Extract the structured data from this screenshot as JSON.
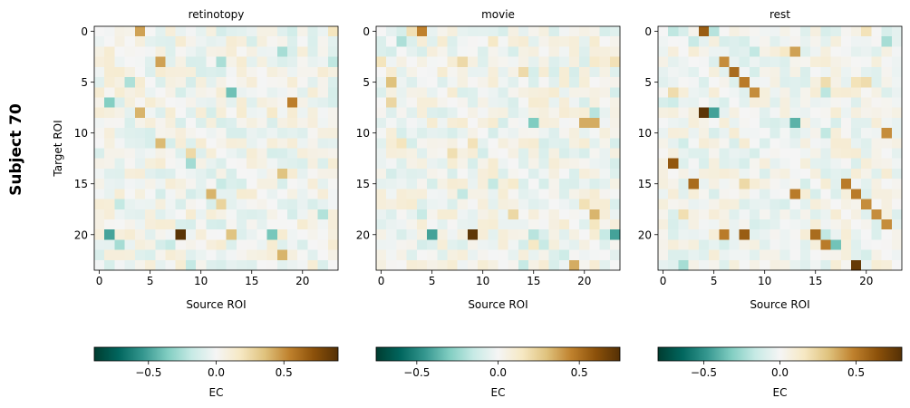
{
  "figure": {
    "row_label": "Subject 70",
    "colormap": "BrBG_r",
    "colormap_stops": [
      "#003c30",
      "#01665e",
      "#35978f",
      "#80cdc1",
      "#c7eae5",
      "#f5f5f5",
      "#f6e8c3",
      "#dfc27d",
      "#bf812d",
      "#8c510a",
      "#543005"
    ]
  },
  "chart_data": [
    {
      "type": "heatmap",
      "title": "retinotopy",
      "xlabel": "Source ROI",
      "ylabel": "Target ROI",
      "xticks": [
        "0",
        "5",
        "10",
        "15",
        "20"
      ],
      "yticks": [
        "0",
        "5",
        "10",
        "15",
        "20"
      ],
      "grid": false,
      "colorbar": {
        "label": "EC",
        "range": [
          -0.9,
          0.9
        ],
        "ticks": [
          "−0.5",
          "0.0",
          "0.5"
        ],
        "tick_values": [
          -0.5,
          0.0,
          0.5
        ],
        "orientation": "horizontal",
        "placement": "below"
      },
      "n": 24,
      "noise_seed": 17,
      "noise_amp": 0.28,
      "highlights": [
        {
          "row": 20,
          "col": 8,
          "value": 0.88
        },
        {
          "row": 20,
          "col": 1,
          "value": -0.5
        },
        {
          "row": 0,
          "col": 4,
          "value": 0.45
        },
        {
          "row": 3,
          "col": 6,
          "value": 0.45
        },
        {
          "row": 7,
          "col": 1,
          "value": -0.35
        },
        {
          "row": 11,
          "col": 6,
          "value": 0.38
        },
        {
          "row": 7,
          "col": 19,
          "value": 0.55
        },
        {
          "row": 6,
          "col": 13,
          "value": -0.4
        },
        {
          "row": 20,
          "col": 17,
          "value": -0.38
        },
        {
          "row": 20,
          "col": 13,
          "value": 0.35
        },
        {
          "row": 16,
          "col": 11,
          "value": 0.4
        },
        {
          "row": 14,
          "col": 18,
          "value": 0.35
        },
        {
          "row": 22,
          "col": 18,
          "value": 0.4
        },
        {
          "row": 8,
          "col": 4,
          "value": 0.4
        }
      ]
    },
    {
      "type": "heatmap",
      "title": "movie",
      "xlabel": "Source ROI",
      "ylabel": "",
      "xticks": [
        "0",
        "5",
        "10",
        "15",
        "20"
      ],
      "yticks": [
        "0",
        "5",
        "10",
        "15",
        "20"
      ],
      "grid": false,
      "colorbar": {
        "label": "EC",
        "range": [
          -0.75,
          0.75
        ],
        "ticks": [
          "−0.5",
          "0.0",
          "0.5"
        ],
        "tick_values": [
          -0.5,
          0.0,
          0.5
        ],
        "orientation": "horizontal",
        "placement": "below"
      },
      "n": 24,
      "noise_seed": 43,
      "noise_amp": 0.24,
      "highlights": [
        {
          "row": 20,
          "col": 9,
          "value": 0.72
        },
        {
          "row": 20,
          "col": 5,
          "value": -0.42
        },
        {
          "row": 20,
          "col": 23,
          "value": -0.42
        },
        {
          "row": 0,
          "col": 4,
          "value": 0.45
        },
        {
          "row": 9,
          "col": 15,
          "value": -0.3
        },
        {
          "row": 9,
          "col": 20,
          "value": 0.35
        },
        {
          "row": 9,
          "col": 21,
          "value": 0.35
        },
        {
          "row": 23,
          "col": 19,
          "value": 0.35
        },
        {
          "row": 18,
          "col": 21,
          "value": 0.33
        },
        {
          "row": 5,
          "col": 1,
          "value": 0.3
        }
      ]
    },
    {
      "type": "heatmap",
      "title": "rest",
      "xlabel": "Source ROI",
      "ylabel": "",
      "xticks": [
        "0",
        "5",
        "10",
        "15",
        "20"
      ],
      "yticks": [
        "0",
        "5",
        "10",
        "15",
        "20"
      ],
      "grid": false,
      "colorbar": {
        "label": "EC",
        "range": [
          -0.8,
          0.8
        ],
        "ticks": [
          "−0.5",
          "0.0",
          "0.5"
        ],
        "tick_values": [
          -0.5,
          0.0,
          0.5
        ],
        "orientation": "horizontal",
        "placement": "below"
      },
      "n": 24,
      "noise_seed": 91,
      "noise_amp": 0.24,
      "highlights": [
        {
          "row": 0,
          "col": 4,
          "value": 0.6
        },
        {
          "row": 3,
          "col": 6,
          "value": 0.45
        },
        {
          "row": 4,
          "col": 7,
          "value": 0.55
        },
        {
          "row": 5,
          "col": 8,
          "value": 0.5
        },
        {
          "row": 6,
          "col": 9,
          "value": 0.45
        },
        {
          "row": 8,
          "col": 4,
          "value": 0.78
        },
        {
          "row": 8,
          "col": 5,
          "value": -0.45
        },
        {
          "row": 13,
          "col": 1,
          "value": 0.62
        },
        {
          "row": 15,
          "col": 3,
          "value": 0.55
        },
        {
          "row": 16,
          "col": 13,
          "value": 0.5
        },
        {
          "row": 15,
          "col": 18,
          "value": 0.5
        },
        {
          "row": 16,
          "col": 19,
          "value": 0.5
        },
        {
          "row": 17,
          "col": 20,
          "value": 0.45
        },
        {
          "row": 18,
          "col": 21,
          "value": 0.45
        },
        {
          "row": 19,
          "col": 22,
          "value": 0.45
        },
        {
          "row": 20,
          "col": 6,
          "value": 0.5
        },
        {
          "row": 20,
          "col": 8,
          "value": 0.6
        },
        {
          "row": 20,
          "col": 15,
          "value": 0.55
        },
        {
          "row": 21,
          "col": 16,
          "value": 0.5
        },
        {
          "row": 21,
          "col": 17,
          "value": -0.35
        },
        {
          "row": 23,
          "col": 19,
          "value": 0.75
        },
        {
          "row": 9,
          "col": 13,
          "value": -0.4
        },
        {
          "row": 2,
          "col": 13,
          "value": 0.4
        },
        {
          "row": 10,
          "col": 22,
          "value": 0.45
        }
      ]
    }
  ]
}
